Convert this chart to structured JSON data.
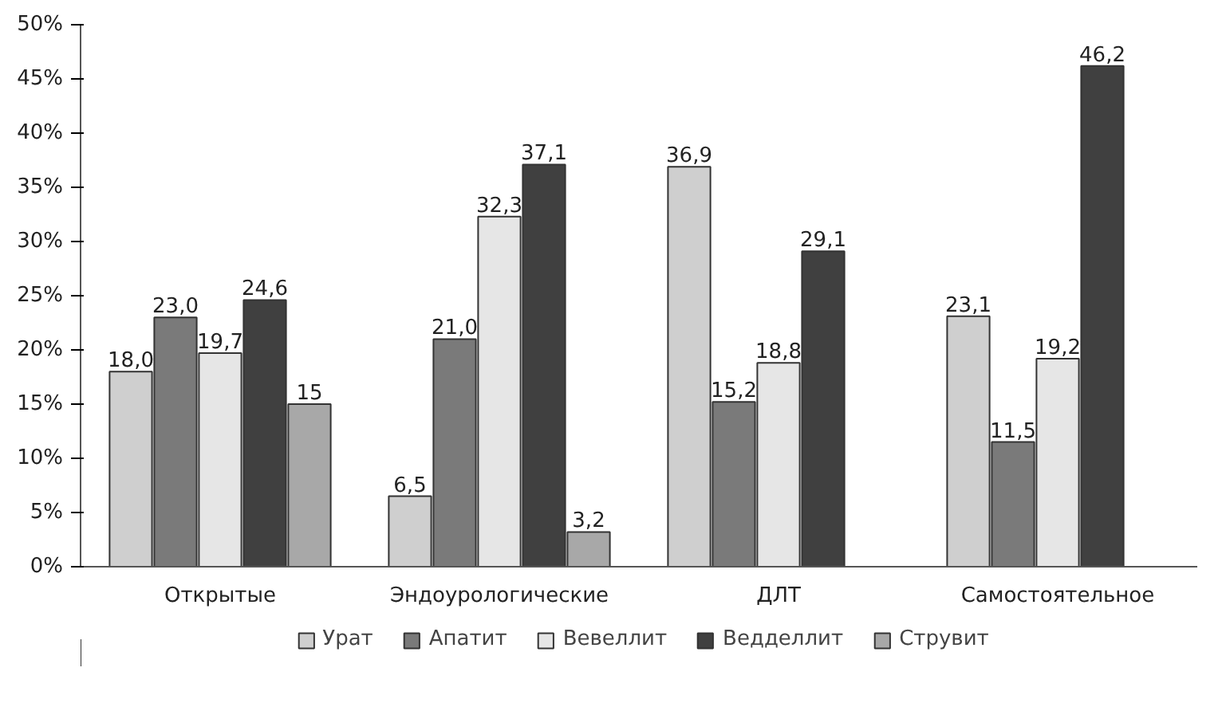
{
  "chart_data": {
    "type": "bar",
    "categories": [
      "Открытые",
      "Эндоурологические",
      "ДЛТ",
      "Самостоятельное"
    ],
    "series": [
      {
        "name": "Урат",
        "color": "#cfcfcf",
        "values": [
          18.0,
          6.5,
          36.9,
          23.1
        ],
        "value_labels": [
          "18,0",
          "6,5",
          "36,9",
          "23,1"
        ]
      },
      {
        "name": "Апатит",
        "color": "#7a7a7a",
        "values": [
          23.0,
          21.0,
          15.2,
          11.5
        ],
        "value_labels": [
          "23,0",
          "21,0",
          "15,2",
          "11,5"
        ]
      },
      {
        "name": "Вевеллит",
        "color": "#e6e6e6",
        "values": [
          19.7,
          32.3,
          18.8,
          19.2
        ],
        "value_labels": [
          "19,7",
          "32,3",
          "18,8",
          "19,2"
        ]
      },
      {
        "name": "Ведделлит",
        "color": "#404040",
        "values": [
          24.6,
          37.1,
          29.1,
          46.2
        ],
        "value_labels": [
          "24,6",
          "37,1",
          "29,1",
          "46,2"
        ]
      },
      {
        "name": "Струвит",
        "color": "#a8a8a8",
        "values": [
          15,
          3.2,
          null,
          null
        ],
        "value_labels": [
          "15",
          "3,2",
          null,
          null
        ]
      }
    ],
    "ylim": [
      0,
      50
    ],
    "yticks": [
      {
        "value": 0,
        "label": "0%"
      },
      {
        "value": 5,
        "label": "5%"
      },
      {
        "value": 10,
        "label": "10%"
      },
      {
        "value": 15,
        "label": "15%"
      },
      {
        "value": 20,
        "label": "20%"
      },
      {
        "value": 25,
        "label": "25%"
      },
      {
        "value": 30,
        "label": "30%"
      },
      {
        "value": 35,
        "label": "35%"
      },
      {
        "value": 40,
        "label": "40%"
      },
      {
        "value": 45,
        "label": "45%"
      },
      {
        "value": 50,
        "label": "50%"
      }
    ],
    "grid": false,
    "legend": "bottom"
  }
}
